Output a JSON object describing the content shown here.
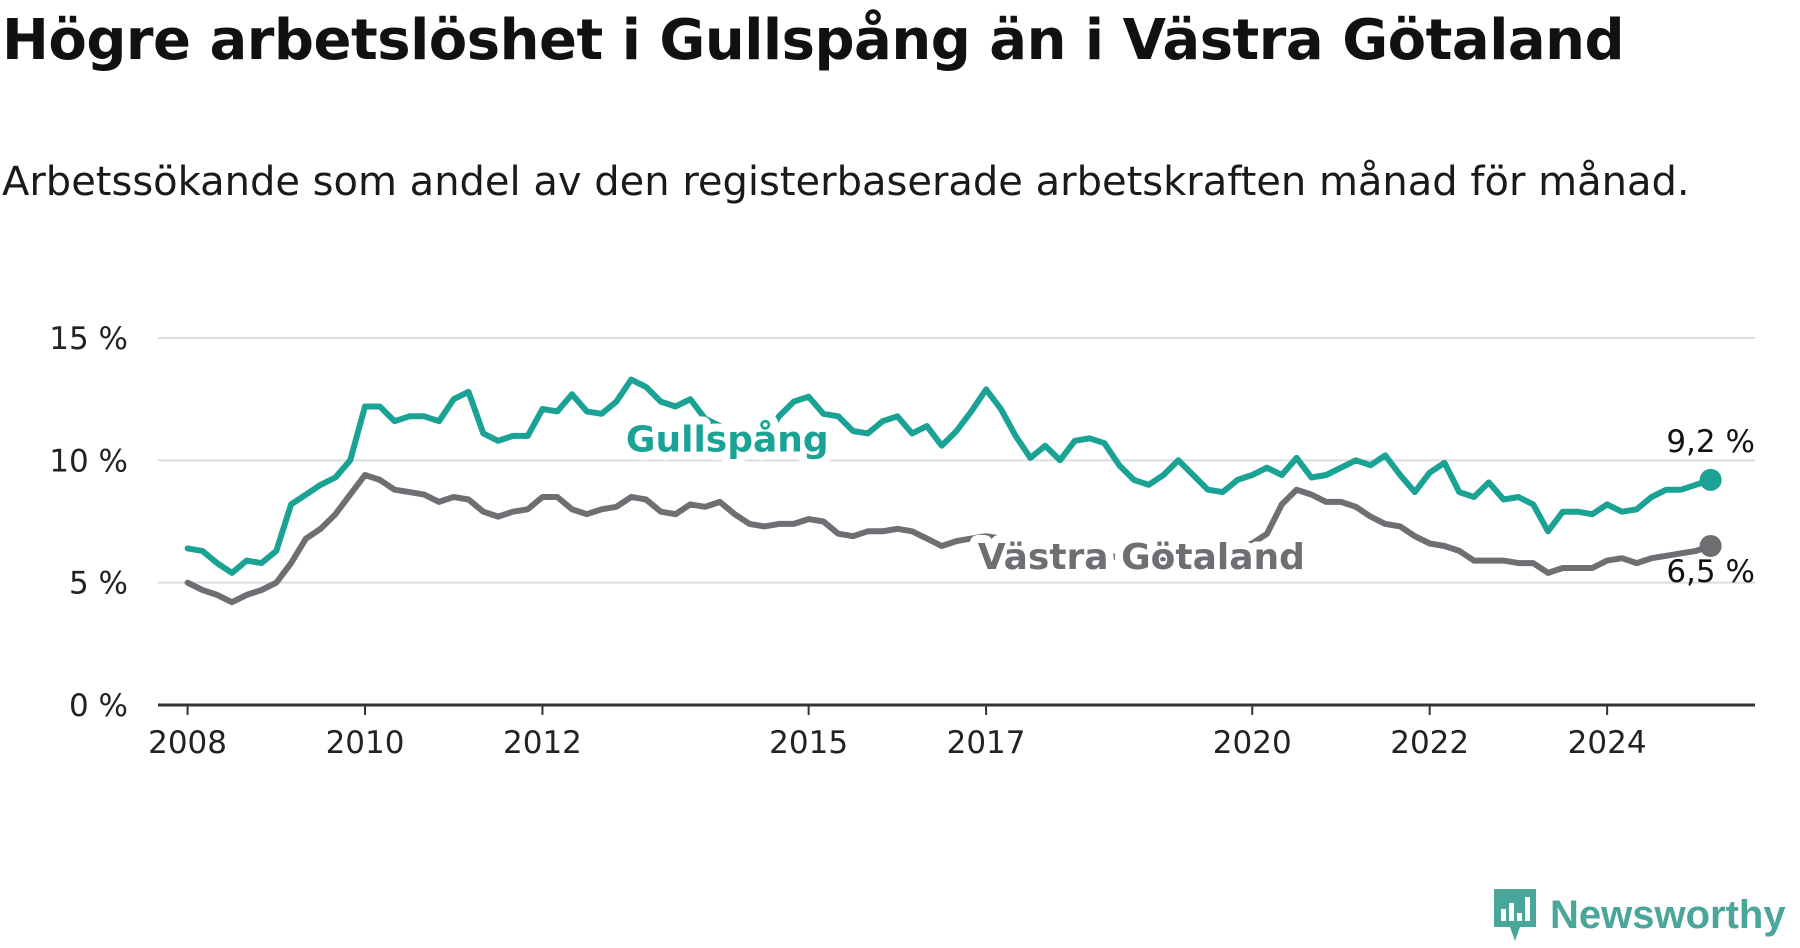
{
  "title": "Högre arbetslöshet i Gullspång än i Västra Götaland",
  "subtitle": "Arbetssökande som andel av den registerbaserade arbetskraften månad för månad.",
  "brand": {
    "name": "Newsworthy",
    "color": "#4aa59a",
    "icon": "newsworthy-logo-icon"
  },
  "chart_data": {
    "type": "line",
    "title": "Högre arbetslöshet i Gullspång än i Västra Götaland",
    "subtitle": "Arbetssökande som andel av den registerbaserade arbetskraften månad för månad.",
    "xlabel": "",
    "ylabel": "",
    "ylim": [
      0,
      15
    ],
    "xlim": [
      "2007-09",
      "2025-09"
    ],
    "grid": true,
    "y_ticks": [
      0,
      5,
      10,
      15
    ],
    "y_tick_labels": [
      "0 %",
      "5 %",
      "10 %",
      "15 %"
    ],
    "x_ticks": [
      "2008-01",
      "2010-01",
      "2012-01",
      "2015-01",
      "2017-01",
      "2020-01",
      "2022-01",
      "2024-01"
    ],
    "x_tick_labels": [
      "2008",
      "2010",
      "2012",
      "2015",
      "2017",
      "2020",
      "2022",
      "2024"
    ],
    "series": [
      {
        "name": "Gullspång",
        "color": "#1aa394",
        "end_label": "9,2 %",
        "points": [
          [
            "2008-01",
            6.4
          ],
          [
            "2008-03",
            6.3
          ],
          [
            "2008-05",
            5.8
          ],
          [
            "2008-07",
            5.4
          ],
          [
            "2008-09",
            5.9
          ],
          [
            "2008-11",
            5.8
          ],
          [
            "2009-01",
            6.3
          ],
          [
            "2009-03",
            8.2
          ],
          [
            "2009-05",
            8.6
          ],
          [
            "2009-07",
            9.0
          ],
          [
            "2009-09",
            9.3
          ],
          [
            "2009-11",
            10.0
          ],
          [
            "2010-01",
            12.2
          ],
          [
            "2010-03",
            12.2
          ],
          [
            "2010-05",
            11.6
          ],
          [
            "2010-07",
            11.8
          ],
          [
            "2010-09",
            11.8
          ],
          [
            "2010-11",
            11.6
          ],
          [
            "2011-01",
            12.5
          ],
          [
            "2011-03",
            12.8
          ],
          [
            "2011-05",
            11.1
          ],
          [
            "2011-07",
            10.8
          ],
          [
            "2011-09",
            11.0
          ],
          [
            "2011-11",
            11.0
          ],
          [
            "2012-01",
            12.1
          ],
          [
            "2012-03",
            12.0
          ],
          [
            "2012-05",
            12.7
          ],
          [
            "2012-07",
            12.0
          ],
          [
            "2012-09",
            11.9
          ],
          [
            "2012-11",
            12.4
          ],
          [
            "2013-01",
            13.3
          ],
          [
            "2013-03",
            13.0
          ],
          [
            "2013-05",
            12.4
          ],
          [
            "2013-07",
            12.2
          ],
          [
            "2013-09",
            12.5
          ],
          [
            "2013-11",
            11.7
          ],
          [
            "2014-01",
            11.4
          ],
          [
            "2014-03",
            10.8
          ],
          [
            "2014-05",
            10.2
          ],
          [
            "2014-07",
            10.9
          ],
          [
            "2014-09",
            11.8
          ],
          [
            "2014-11",
            12.4
          ],
          [
            "2015-01",
            12.6
          ],
          [
            "2015-03",
            11.9
          ],
          [
            "2015-05",
            11.8
          ],
          [
            "2015-07",
            11.2
          ],
          [
            "2015-09",
            11.1
          ],
          [
            "2015-11",
            11.6
          ],
          [
            "2016-01",
            11.8
          ],
          [
            "2016-03",
            11.1
          ],
          [
            "2016-05",
            11.4
          ],
          [
            "2016-07",
            10.6
          ],
          [
            "2016-09",
            11.2
          ],
          [
            "2016-11",
            12.0
          ],
          [
            "2017-01",
            12.9
          ],
          [
            "2017-03",
            12.1
          ],
          [
            "2017-05",
            11.0
          ],
          [
            "2017-07",
            10.1
          ],
          [
            "2017-09",
            10.6
          ],
          [
            "2017-11",
            10.0
          ],
          [
            "2018-01",
            10.8
          ],
          [
            "2018-03",
            10.9
          ],
          [
            "2018-05",
            10.7
          ],
          [
            "2018-07",
            9.8
          ],
          [
            "2018-09",
            9.2
          ],
          [
            "2018-11",
            9.0
          ],
          [
            "2019-01",
            9.4
          ],
          [
            "2019-03",
            10.0
          ],
          [
            "2019-05",
            9.4
          ],
          [
            "2019-07",
            8.8
          ],
          [
            "2019-09",
            8.7
          ],
          [
            "2019-11",
            9.2
          ],
          [
            "2020-01",
            9.4
          ],
          [
            "2020-03",
            9.7
          ],
          [
            "2020-05",
            9.4
          ],
          [
            "2020-07",
            10.1
          ],
          [
            "2020-09",
            9.3
          ],
          [
            "2020-11",
            9.4
          ],
          [
            "2021-01",
            9.7
          ],
          [
            "2021-03",
            10.0
          ],
          [
            "2021-05",
            9.8
          ],
          [
            "2021-07",
            10.2
          ],
          [
            "2021-09",
            9.4
          ],
          [
            "2021-11",
            8.7
          ],
          [
            "2022-01",
            9.5
          ],
          [
            "2022-03",
            9.9
          ],
          [
            "2022-05",
            8.7
          ],
          [
            "2022-07",
            8.5
          ],
          [
            "2022-09",
            9.1
          ],
          [
            "2022-11",
            8.4
          ],
          [
            "2023-01",
            8.5
          ],
          [
            "2023-03",
            8.2
          ],
          [
            "2023-05",
            7.1
          ],
          [
            "2023-07",
            7.9
          ],
          [
            "2023-09",
            7.9
          ],
          [
            "2023-11",
            7.8
          ],
          [
            "2024-01",
            8.2
          ],
          [
            "2024-03",
            7.9
          ],
          [
            "2024-05",
            8.0
          ],
          [
            "2024-07",
            8.5
          ],
          [
            "2024-09",
            8.8
          ],
          [
            "2024-11",
            8.8
          ],
          [
            "2025-01",
            9.0
          ],
          [
            "2025-03",
            9.2
          ]
        ]
      },
      {
        "name": "Västra Götaland",
        "color": "#6e6e73",
        "end_label": "6,5 %",
        "points": [
          [
            "2008-01",
            5.0
          ],
          [
            "2008-03",
            4.7
          ],
          [
            "2008-05",
            4.5
          ],
          [
            "2008-07",
            4.2
          ],
          [
            "2008-09",
            4.5
          ],
          [
            "2008-11",
            4.7
          ],
          [
            "2009-01",
            5.0
          ],
          [
            "2009-03",
            5.8
          ],
          [
            "2009-05",
            6.8
          ],
          [
            "2009-07",
            7.2
          ],
          [
            "2009-09",
            7.8
          ],
          [
            "2009-11",
            8.6
          ],
          [
            "2010-01",
            9.4
          ],
          [
            "2010-03",
            9.2
          ],
          [
            "2010-05",
            8.8
          ],
          [
            "2010-07",
            8.7
          ],
          [
            "2010-09",
            8.6
          ],
          [
            "2010-11",
            8.3
          ],
          [
            "2011-01",
            8.5
          ],
          [
            "2011-03",
            8.4
          ],
          [
            "2011-05",
            7.9
          ],
          [
            "2011-07",
            7.7
          ],
          [
            "2011-09",
            7.9
          ],
          [
            "2011-11",
            8.0
          ],
          [
            "2012-01",
            8.5
          ],
          [
            "2012-03",
            8.5
          ],
          [
            "2012-05",
            8.0
          ],
          [
            "2012-07",
            7.8
          ],
          [
            "2012-09",
            8.0
          ],
          [
            "2012-11",
            8.1
          ],
          [
            "2013-01",
            8.5
          ],
          [
            "2013-03",
            8.4
          ],
          [
            "2013-05",
            7.9
          ],
          [
            "2013-07",
            7.8
          ],
          [
            "2013-09",
            8.2
          ],
          [
            "2013-11",
            8.1
          ],
          [
            "2014-01",
            8.3
          ],
          [
            "2014-03",
            7.8
          ],
          [
            "2014-05",
            7.4
          ],
          [
            "2014-07",
            7.3
          ],
          [
            "2014-09",
            7.4
          ],
          [
            "2014-11",
            7.4
          ],
          [
            "2015-01",
            7.6
          ],
          [
            "2015-03",
            7.5
          ],
          [
            "2015-05",
            7.0
          ],
          [
            "2015-07",
            6.9
          ],
          [
            "2015-09",
            7.1
          ],
          [
            "2015-11",
            7.1
          ],
          [
            "2016-01",
            7.2
          ],
          [
            "2016-03",
            7.1
          ],
          [
            "2016-05",
            6.8
          ],
          [
            "2016-07",
            6.5
          ],
          [
            "2016-09",
            6.7
          ],
          [
            "2016-11",
            6.8
          ],
          [
            "2017-01",
            6.9
          ],
          [
            "2017-03",
            6.8
          ],
          [
            "2017-05",
            6.7
          ],
          [
            "2017-07",
            6.3
          ],
          [
            "2017-09",
            6.5
          ],
          [
            "2017-11",
            6.3
          ],
          [
            "2018-01",
            6.4
          ],
          [
            "2018-03",
            6.3
          ],
          [
            "2018-05",
            6.2
          ],
          [
            "2018-07",
            6.0
          ],
          [
            "2018-09",
            6.0
          ],
          [
            "2018-11",
            5.9
          ],
          [
            "2019-01",
            6.0
          ],
          [
            "2019-03",
            6.0
          ],
          [
            "2019-05",
            6.1
          ],
          [
            "2019-07",
            6.1
          ],
          [
            "2019-09",
            6.3
          ],
          [
            "2019-11",
            6.4
          ],
          [
            "2020-01",
            6.6
          ],
          [
            "2020-03",
            7.0
          ],
          [
            "2020-05",
            8.2
          ],
          [
            "2020-07",
            8.8
          ],
          [
            "2020-09",
            8.6
          ],
          [
            "2020-11",
            8.3
          ],
          [
            "2021-01",
            8.3
          ],
          [
            "2021-03",
            8.1
          ],
          [
            "2021-05",
            7.7
          ],
          [
            "2021-07",
            7.4
          ],
          [
            "2021-09",
            7.3
          ],
          [
            "2021-11",
            6.9
          ],
          [
            "2022-01",
            6.6
          ],
          [
            "2022-03",
            6.5
          ],
          [
            "2022-05",
            6.3
          ],
          [
            "2022-07",
            5.9
          ],
          [
            "2022-09",
            5.9
          ],
          [
            "2022-11",
            5.9
          ],
          [
            "2023-01",
            5.8
          ],
          [
            "2023-03",
            5.8
          ],
          [
            "2023-05",
            5.4
          ],
          [
            "2023-07",
            5.6
          ],
          [
            "2023-09",
            5.6
          ],
          [
            "2023-11",
            5.6
          ],
          [
            "2024-01",
            5.9
          ],
          [
            "2024-03",
            6.0
          ],
          [
            "2024-05",
            5.8
          ],
          [
            "2024-07",
            6.0
          ],
          [
            "2024-09",
            6.1
          ],
          [
            "2024-11",
            6.2
          ],
          [
            "2025-01",
            6.3
          ],
          [
            "2025-03",
            6.5
          ]
        ]
      }
    ]
  }
}
